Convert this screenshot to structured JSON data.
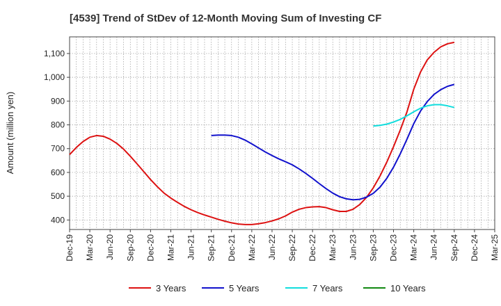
{
  "chart_data": {
    "type": "line",
    "title": "[4539]  Trend of StDev of 12-Month Moving Sum of Investing CF",
    "xlabel": "",
    "ylabel": "Amount (million yen)",
    "ylim": [
      360,
      1170
    ],
    "yticks": [
      400,
      500,
      600,
      700,
      800,
      900,
      1000,
      1100
    ],
    "ytick_labels": [
      "400",
      "500",
      "600",
      "700",
      "800",
      "900",
      "1,000",
      "1,100"
    ],
    "x_range": [
      "2019-12",
      "2025-03"
    ],
    "xtick_labels": [
      "Dec-19",
      "Mar-20",
      "Jun-20",
      "Sep-20",
      "Dec-20",
      "Mar-21",
      "Jun-21",
      "Sep-21",
      "Dec-21",
      "Mar-22",
      "Jun-22",
      "Sep-22",
      "Dec-22",
      "Mar-23",
      "Jun-23",
      "Sep-23",
      "Dec-23",
      "Mar-24",
      "Jun-24",
      "Sep-24",
      "Dec-24",
      "Mar-25"
    ],
    "grid": true,
    "legend_position": "bottom",
    "series": [
      {
        "name": "3 Years",
        "color": "#dd1111",
        "points": [
          [
            "2019-12",
            675
          ],
          [
            "2020-01",
            705
          ],
          [
            "2020-02",
            730
          ],
          [
            "2020-03",
            748
          ],
          [
            "2020-04",
            755
          ],
          [
            "2020-05",
            752
          ],
          [
            "2020-06",
            740
          ],
          [
            "2020-07",
            722
          ],
          [
            "2020-08",
            698
          ],
          [
            "2020-09",
            668
          ],
          [
            "2020-10",
            636
          ],
          [
            "2020-11",
            603
          ],
          [
            "2020-12",
            570
          ],
          [
            "2021-01",
            540
          ],
          [
            "2021-02",
            513
          ],
          [
            "2021-03",
            492
          ],
          [
            "2021-04",
            474
          ],
          [
            "2021-05",
            457
          ],
          [
            "2021-06",
            443
          ],
          [
            "2021-07",
            431
          ],
          [
            "2021-08",
            421
          ],
          [
            "2021-09",
            412
          ],
          [
            "2021-10",
            403
          ],
          [
            "2021-11",
            395
          ],
          [
            "2021-12",
            388
          ],
          [
            "2022-01",
            383
          ],
          [
            "2022-02",
            381
          ],
          [
            "2022-03",
            381
          ],
          [
            "2022-04",
            384
          ],
          [
            "2022-05",
            389
          ],
          [
            "2022-06",
            396
          ],
          [
            "2022-07",
            405
          ],
          [
            "2022-08",
            417
          ],
          [
            "2022-09",
            433
          ],
          [
            "2022-10",
            445
          ],
          [
            "2022-11",
            452
          ],
          [
            "2022-12",
            455
          ],
          [
            "2023-01",
            456
          ],
          [
            "2023-02",
            452
          ],
          [
            "2023-03",
            443
          ],
          [
            "2023-04",
            436
          ],
          [
            "2023-05",
            436
          ],
          [
            "2023-06",
            445
          ],
          [
            "2023-07",
            465
          ],
          [
            "2023-08",
            495
          ],
          [
            "2023-09",
            535
          ],
          [
            "2023-10",
            585
          ],
          [
            "2023-11",
            643
          ],
          [
            "2023-12",
            708
          ],
          [
            "2024-01",
            778
          ],
          [
            "2024-02",
            855
          ],
          [
            "2024-03",
            950
          ],
          [
            "2024-04",
            1022
          ],
          [
            "2024-05",
            1073
          ],
          [
            "2024-06",
            1105
          ],
          [
            "2024-07",
            1128
          ],
          [
            "2024-08",
            1141
          ],
          [
            "2024-09",
            1147
          ]
        ]
      },
      {
        "name": "5 Years",
        "color": "#1111cc",
        "points": [
          [
            "2021-09",
            755
          ],
          [
            "2021-10",
            757
          ],
          [
            "2021-11",
            757
          ],
          [
            "2021-12",
            755
          ],
          [
            "2022-01",
            748
          ],
          [
            "2022-02",
            736
          ],
          [
            "2022-03",
            720
          ],
          [
            "2022-04",
            703
          ],
          [
            "2022-05",
            686
          ],
          [
            "2022-06",
            671
          ],
          [
            "2022-07",
            657
          ],
          [
            "2022-08",
            645
          ],
          [
            "2022-09",
            632
          ],
          [
            "2022-10",
            615
          ],
          [
            "2022-11",
            596
          ],
          [
            "2022-12",
            575
          ],
          [
            "2023-01",
            553
          ],
          [
            "2023-02",
            532
          ],
          [
            "2023-03",
            513
          ],
          [
            "2023-04",
            498
          ],
          [
            "2023-05",
            489
          ],
          [
            "2023-06",
            485
          ],
          [
            "2023-07",
            487
          ],
          [
            "2023-08",
            496
          ],
          [
            "2023-09",
            512
          ],
          [
            "2023-10",
            538
          ],
          [
            "2023-11",
            575
          ],
          [
            "2023-12",
            622
          ],
          [
            "2024-01",
            678
          ],
          [
            "2024-02",
            740
          ],
          [
            "2024-03",
            805
          ],
          [
            "2024-04",
            858
          ],
          [
            "2024-05",
            898
          ],
          [
            "2024-06",
            928
          ],
          [
            "2024-07",
            948
          ],
          [
            "2024-08",
            962
          ],
          [
            "2024-09",
            970
          ]
        ]
      },
      {
        "name": "7 Years",
        "color": "#11dddd",
        "points": [
          [
            "2023-09",
            795
          ],
          [
            "2023-10",
            798
          ],
          [
            "2023-11",
            803
          ],
          [
            "2023-12",
            812
          ],
          [
            "2024-01",
            823
          ],
          [
            "2024-02",
            838
          ],
          [
            "2024-03",
            855
          ],
          [
            "2024-04",
            870
          ],
          [
            "2024-05",
            880
          ],
          [
            "2024-06",
            885
          ],
          [
            "2024-07",
            885
          ],
          [
            "2024-08",
            880
          ],
          [
            "2024-09",
            873
          ]
        ]
      },
      {
        "name": "10 Years",
        "color": "#118811",
        "points": []
      }
    ]
  }
}
